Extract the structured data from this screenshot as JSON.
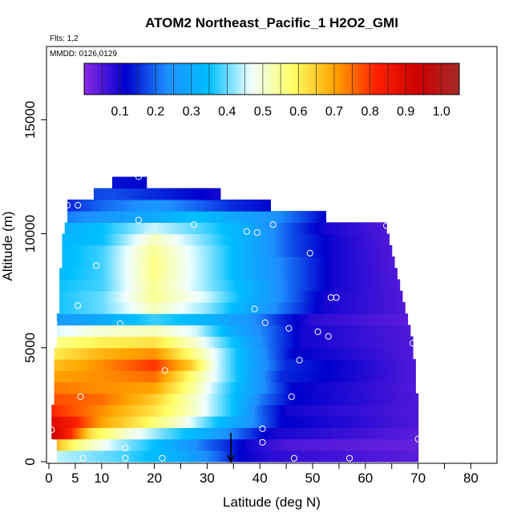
{
  "chart_data": {
    "type": "heatmap",
    "title": "ATOM2 Northeast_Pacific_1 H2O2_GMI",
    "flights_label": "Flts: 1,2",
    "dates_label": "MMDD: 0126,0129",
    "xlabel": "Latitude (deg N)",
    "ylabel": "Altitude (m)",
    "xlim": [
      0,
      85
    ],
    "ylim": [
      0,
      17500
    ],
    "x_ticks": [
      0,
      5,
      10,
      20,
      30,
      40,
      50,
      60,
      70,
      80
    ],
    "y_ticks": [
      0,
      5000,
      10000,
      15000
    ],
    "grid": false,
    "colorbar": {
      "placement": "top-inside",
      "range": [
        0,
        1.05
      ],
      "ticks": [
        0.1,
        0.2,
        0.3,
        0.4,
        0.5,
        0.6,
        0.7,
        0.8,
        0.9,
        1.0
      ],
      "tick_labels": [
        "0.1",
        "0.2",
        "0.3",
        "0.4",
        "0.5",
        "0.6",
        "0.7",
        "0.8",
        "0.9",
        "1.0"
      ],
      "colors": [
        "#8a2be2",
        "#0000cd",
        "#1e90ff",
        "#00bfff",
        "#f0ffff",
        "#ffff66",
        "#ffa500",
        "#ff2200",
        "#cc0000",
        "#a52a2a"
      ]
    },
    "marker": {
      "type": "arrow",
      "x": 34.5,
      "y_top": 700,
      "y_bottom": 0
    },
    "bands": [
      {
        "y0": 0,
        "y1": 500,
        "x_start": 1.5,
        "x_end": 70,
        "profile": [
          [
            0,
            0.45
          ],
          [
            15,
            0.38
          ],
          [
            25,
            0.3
          ],
          [
            32,
            0.2
          ],
          [
            36,
            0.12
          ],
          [
            42,
            0.08
          ],
          [
            70,
            0.04
          ]
        ]
      },
      {
        "y0": 500,
        "y1": 1000,
        "x_start": 1.5,
        "x_end": 70,
        "profile": [
          [
            0,
            0.8
          ],
          [
            2,
            0.65
          ],
          [
            6,
            0.55
          ],
          [
            12,
            0.45
          ],
          [
            20,
            0.35
          ],
          [
            30,
            0.2
          ],
          [
            38,
            0.1
          ],
          [
            45,
            0.05
          ],
          [
            70,
            0.03
          ]
        ]
      },
      {
        "y0": 1000,
        "y1": 1500,
        "x_start": 0.5,
        "x_end": 70,
        "profile": [
          [
            0,
            0.95
          ],
          [
            4,
            0.82
          ],
          [
            8,
            0.62
          ],
          [
            15,
            0.5
          ],
          [
            22,
            0.4
          ],
          [
            30,
            0.3
          ],
          [
            36,
            0.2
          ],
          [
            42,
            0.1
          ],
          [
            70,
            0.04
          ]
        ]
      },
      {
        "y0": 1500,
        "y1": 2000,
        "x_start": 0.5,
        "x_end": 70,
        "profile": [
          [
            0,
            0.9
          ],
          [
            4,
            0.85
          ],
          [
            10,
            0.7
          ],
          [
            18,
            0.6
          ],
          [
            25,
            0.5
          ],
          [
            32,
            0.35
          ],
          [
            38,
            0.25
          ],
          [
            44,
            0.12
          ],
          [
            70,
            0.05
          ]
        ]
      },
      {
        "y0": 2000,
        "y1": 2500,
        "x_start": 0.5,
        "x_end": 70,
        "profile": [
          [
            0,
            0.82
          ],
          [
            10,
            0.72
          ],
          [
            20,
            0.62
          ],
          [
            28,
            0.5
          ],
          [
            35,
            0.35
          ],
          [
            40,
            0.2
          ],
          [
            45,
            0.1
          ],
          [
            70,
            0.05
          ]
        ]
      },
      {
        "y0": 2500,
        "y1": 3000,
        "x_start": 1,
        "x_end": 70,
        "profile": [
          [
            0,
            0.78
          ],
          [
            10,
            0.75
          ],
          [
            20,
            0.65
          ],
          [
            28,
            0.5
          ],
          [
            35,
            0.35
          ],
          [
            40,
            0.22
          ],
          [
            46,
            0.12
          ],
          [
            70,
            0.05
          ]
        ]
      },
      {
        "y0": 3000,
        "y1": 3500,
        "x_start": 1,
        "x_end": 69.5,
        "profile": [
          [
            0,
            0.74
          ],
          [
            10,
            0.72
          ],
          [
            20,
            0.7
          ],
          [
            27,
            0.55
          ],
          [
            33,
            0.4
          ],
          [
            40,
            0.25
          ],
          [
            46,
            0.12
          ],
          [
            69,
            0.05
          ]
        ]
      },
      {
        "y0": 3500,
        "y1": 4000,
        "x_start": 1,
        "x_end": 69.5,
        "profile": [
          [
            0,
            0.7
          ],
          [
            10,
            0.72
          ],
          [
            20,
            0.75
          ],
          [
            26,
            0.6
          ],
          [
            32,
            0.45
          ],
          [
            38,
            0.3
          ],
          [
            44,
            0.15
          ],
          [
            69,
            0.05
          ]
        ]
      },
      {
        "y0": 4000,
        "y1": 4500,
        "x_start": 1,
        "x_end": 69.5,
        "profile": [
          [
            0,
            0.66
          ],
          [
            10,
            0.72
          ],
          [
            20,
            0.8
          ],
          [
            27,
            0.65
          ],
          [
            32,
            0.45
          ],
          [
            38,
            0.3
          ],
          [
            45,
            0.15
          ],
          [
            69,
            0.05
          ]
        ]
      },
      {
        "y0": 4500,
        "y1": 5000,
        "x_start": 1,
        "x_end": 69,
        "profile": [
          [
            0,
            0.6
          ],
          [
            10,
            0.68
          ],
          [
            20,
            0.72
          ],
          [
            28,
            0.55
          ],
          [
            34,
            0.4
          ],
          [
            40,
            0.25
          ],
          [
            46,
            0.12
          ],
          [
            69,
            0.05
          ]
        ]
      },
      {
        "y0": 5000,
        "y1": 5500,
        "x_start": 1.5,
        "x_end": 69,
        "profile": [
          [
            0,
            0.55
          ],
          [
            10,
            0.6
          ],
          [
            20,
            0.62
          ],
          [
            28,
            0.5
          ],
          [
            35,
            0.35
          ],
          [
            42,
            0.2
          ],
          [
            48,
            0.1
          ],
          [
            69,
            0.05
          ]
        ]
      },
      {
        "y0": 5500,
        "y1": 6000,
        "x_start": 1.5,
        "x_end": 68.5,
        "profile": [
          [
            0,
            0.45
          ],
          [
            10,
            0.5
          ],
          [
            20,
            0.52
          ],
          [
            28,
            0.45
          ],
          [
            35,
            0.3
          ],
          [
            42,
            0.2
          ],
          [
            48,
            0.1
          ],
          [
            68,
            0.05
          ]
        ]
      },
      {
        "y0": 6000,
        "y1": 6500,
        "x_start": 1.5,
        "x_end": 68,
        "profile": [
          [
            0,
            0.25
          ],
          [
            10,
            0.3
          ],
          [
            20,
            0.38
          ],
          [
            30,
            0.32
          ],
          [
            38,
            0.25
          ],
          [
            44,
            0.15
          ],
          [
            50,
            0.08
          ],
          [
            68,
            0.04
          ]
        ]
      },
      {
        "y0": 6500,
        "y1": 7000,
        "x_start": 2,
        "x_end": 67.5,
        "profile": [
          [
            0,
            0.35
          ],
          [
            10,
            0.4
          ],
          [
            20,
            0.52
          ],
          [
            30,
            0.42
          ],
          [
            38,
            0.3
          ],
          [
            45,
            0.2
          ],
          [
            52,
            0.1
          ],
          [
            67,
            0.05
          ]
        ]
      },
      {
        "y0": 7000,
        "y1": 7500,
        "x_start": 2,
        "x_end": 67,
        "profile": [
          [
            0,
            0.35
          ],
          [
            10,
            0.4
          ],
          [
            20,
            0.55
          ],
          [
            30,
            0.45
          ],
          [
            38,
            0.32
          ],
          [
            46,
            0.2
          ],
          [
            52,
            0.1
          ],
          [
            67,
            0.05
          ]
        ]
      },
      {
        "y0": 7500,
        "y1": 8000,
        "x_start": 2,
        "x_end": 66.5,
        "profile": [
          [
            0,
            0.35
          ],
          [
            10,
            0.38
          ],
          [
            20,
            0.55
          ],
          [
            30,
            0.42
          ],
          [
            38,
            0.32
          ],
          [
            46,
            0.2
          ],
          [
            54,
            0.1
          ],
          [
            66,
            0.05
          ]
        ]
      },
      {
        "y0": 8000,
        "y1": 8500,
        "x_start": 2,
        "x_end": 66,
        "profile": [
          [
            0,
            0.33
          ],
          [
            10,
            0.38
          ],
          [
            20,
            0.56
          ],
          [
            30,
            0.42
          ],
          [
            38,
            0.3
          ],
          [
            46,
            0.2
          ],
          [
            54,
            0.1
          ],
          [
            66,
            0.05
          ]
        ]
      },
      {
        "y0": 8500,
        "y1": 9000,
        "x_start": 2.5,
        "x_end": 65.5,
        "profile": [
          [
            0,
            0.32
          ],
          [
            10,
            0.38
          ],
          [
            20,
            0.56
          ],
          [
            30,
            0.42
          ],
          [
            38,
            0.3
          ],
          [
            46,
            0.2
          ],
          [
            54,
            0.1
          ],
          [
            65,
            0.05
          ]
        ]
      },
      {
        "y0": 9000,
        "y1": 9500,
        "x_start": 2.5,
        "x_end": 65,
        "profile": [
          [
            0,
            0.32
          ],
          [
            10,
            0.38
          ],
          [
            20,
            0.55
          ],
          [
            30,
            0.42
          ],
          [
            38,
            0.3
          ],
          [
            46,
            0.18
          ],
          [
            54,
            0.1
          ],
          [
            65,
            0.05
          ]
        ]
      },
      {
        "y0": 9500,
        "y1": 10000,
        "x_start": 2.5,
        "x_end": 64.5,
        "profile": [
          [
            0,
            0.32
          ],
          [
            10,
            0.35
          ],
          [
            20,
            0.52
          ],
          [
            30,
            0.4
          ],
          [
            38,
            0.3
          ],
          [
            46,
            0.18
          ],
          [
            54,
            0.1
          ],
          [
            64,
            0.05
          ]
        ]
      },
      {
        "y0": 10000,
        "y1": 10500,
        "x_start": 3,
        "x_end": 64,
        "profile": [
          [
            0,
            0.3
          ],
          [
            10,
            0.35
          ],
          [
            20,
            0.45
          ],
          [
            30,
            0.38
          ],
          [
            38,
            0.3
          ],
          [
            46,
            0.18
          ],
          [
            52,
            0.1
          ],
          [
            64,
            0.05
          ]
        ]
      },
      {
        "y0": 10500,
        "y1": 11000,
        "x_start": 3.5,
        "x_end": 52.5,
        "profile": [
          [
            0,
            0.2
          ],
          [
            10,
            0.25
          ],
          [
            20,
            0.3
          ],
          [
            28,
            0.35
          ],
          [
            34,
            0.3
          ],
          [
            42,
            0.25
          ],
          [
            48,
            0.18
          ],
          [
            52,
            0.12
          ]
        ]
      },
      {
        "y0": 11000,
        "y1": 11500,
        "x_start": 3.5,
        "x_end": 42,
        "profile": [
          [
            0,
            0.12
          ],
          [
            10,
            0.2
          ],
          [
            20,
            0.25
          ],
          [
            28,
            0.2
          ],
          [
            35,
            0.15
          ],
          [
            42,
            0.12
          ]
        ]
      },
      {
        "y0": 11500,
        "y1": 12000,
        "x_start": 8.5,
        "x_end": 32.5,
        "profile": [
          [
            0,
            0.15
          ],
          [
            12,
            0.18
          ],
          [
            20,
            0.15
          ],
          [
            28,
            0.12
          ],
          [
            32,
            0.1
          ]
        ]
      },
      {
        "y0": 12000,
        "y1": 12500,
        "x_start": 12,
        "x_end": 18.5,
        "profile": [
          [
            0,
            0.15
          ],
          [
            18,
            0.12
          ]
        ]
      }
    ],
    "points": [
      [
        6.5,
        150
      ],
      [
        14.5,
        150
      ],
      [
        21.5,
        150
      ],
      [
        46.5,
        150
      ],
      [
        57,
        150
      ],
      [
        14.5,
        600
      ],
      [
        40.5,
        850
      ],
      [
        70,
        1000
      ],
      [
        0.5,
        1400
      ],
      [
        40.5,
        1450
      ],
      [
        6,
        2850
      ],
      [
        46,
        2850
      ],
      [
        22,
        4000
      ],
      [
        47.5,
        4450
      ],
      [
        0.5,
        4800
      ],
      [
        53,
        5500
      ],
      [
        69,
        5200
      ],
      [
        51,
        5700
      ],
      [
        13.5,
        6050
      ],
      [
        1,
        6100
      ],
      [
        41,
        6100
      ],
      [
        45.5,
        5850
      ],
      [
        39,
        6700
      ],
      [
        5.5,
        6850
      ],
      [
        53.5,
        7200
      ],
      [
        54.5,
        7200
      ],
      [
        9,
        8600
      ],
      [
        49.5,
        9150
      ],
      [
        18.5,
        9950
      ],
      [
        37.5,
        10100
      ],
      [
        1.5,
        10300
      ],
      [
        39.5,
        10050
      ],
      [
        42.5,
        10400
      ],
      [
        27.5,
        10400
      ],
      [
        64,
        10350
      ],
      [
        17,
        10600
      ],
      [
        3.5,
        11250
      ],
      [
        5.5,
        11250
      ],
      [
        11,
        12200
      ],
      [
        17,
        12500
      ]
    ]
  }
}
